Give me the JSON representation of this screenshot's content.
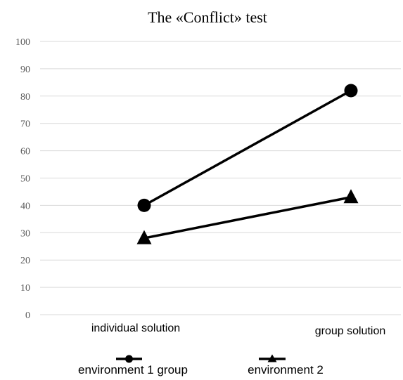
{
  "chart_data": {
    "type": "line",
    "title": "The «Conflict» test",
    "categories": [
      "individual solution",
      "group solution"
    ],
    "series": [
      {
        "name": "environment 1 group",
        "marker": "circle",
        "values": [
          40,
          82
        ],
        "color": "#000000"
      },
      {
        "name": "environment 2",
        "marker": "triangle",
        "values": [
          28,
          43
        ],
        "color": "#000000"
      }
    ],
    "ylim": [
      0,
      100
    ],
    "yticks": [
      0,
      10,
      20,
      30,
      40,
      50,
      60,
      70,
      80,
      90,
      100
    ],
    "grid": true,
    "legend": "bottom"
  }
}
